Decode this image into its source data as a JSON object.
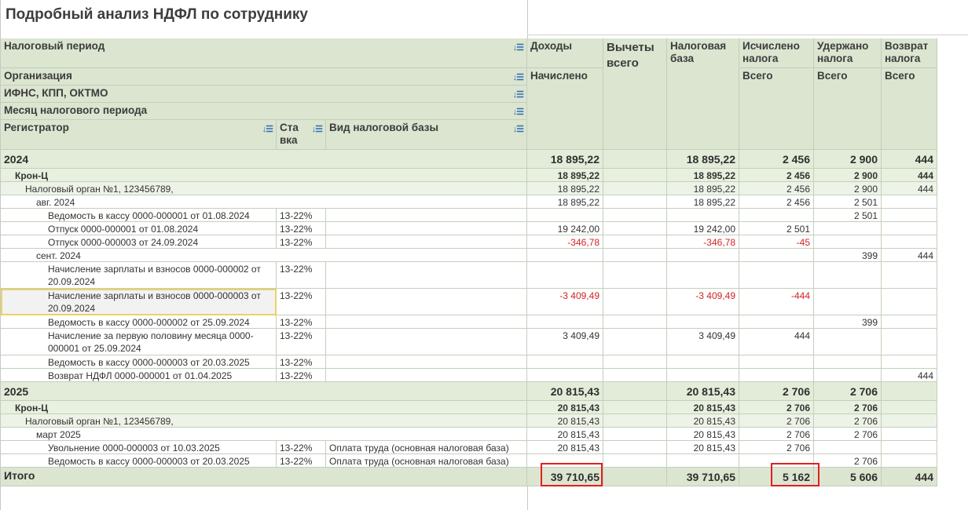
{
  "title": "Подробный анализ НДФЛ по сотруднику",
  "headers": {
    "tax_period": "Налоговый период",
    "organization": "Организация",
    "ifns": "ИФНС, КПП, ОКТМО",
    "month": "Месяц налогового периода",
    "registrar": "Регистратор",
    "rate": "Ста вка",
    "base_kind": "Вид налоговой базы",
    "income": "Доходы",
    "income_sub": "Начислено",
    "deductions": "Вычеты всего",
    "tax_base": "Налоговая база",
    "calculated": "Исчислено налога",
    "calculated_sub": "Всего",
    "withheld": "Удержано налога",
    "withheld_sub": "Всего",
    "refund": "Возврат налога",
    "refund_sub": "Всего"
  },
  "rows": [
    {
      "kind": "yr",
      "label": "2024",
      "income": "18 895,22",
      "base": "18 895,22",
      "calc": "2 456",
      "withheld": "2 900",
      "refund": "444"
    },
    {
      "kind": "org",
      "label": "Крон-Ц",
      "income": "18 895,22",
      "base": "18 895,22",
      "calc": "2 456",
      "withheld": "2 900",
      "refund": "444"
    },
    {
      "kind": "ifns",
      "label": "Налоговый орган №1, 123456789,",
      "income": "18 895,22",
      "base": "18 895,22",
      "calc": "2 456",
      "withheld": "2 900",
      "refund": "444"
    },
    {
      "kind": "month",
      "label": "авг. 2024",
      "income": "18 895,22",
      "base": "18 895,22",
      "calc": "2 456",
      "withheld": "2 501",
      "refund": ""
    },
    {
      "kind": "doc",
      "label": "Ведомость в кассу 0000-000001 от 01.08.2024",
      "rate": "13-22%",
      "base_kind": "",
      "income": "",
      "base": "",
      "calc": "",
      "withheld": "2 501",
      "refund": ""
    },
    {
      "kind": "doc",
      "label": "Отпуск 0000-000001 от 01.08.2024",
      "rate": "13-22%",
      "base_kind": "",
      "income": "19 242,00",
      "base": "19 242,00",
      "calc": "2 501",
      "withheld": "",
      "refund": ""
    },
    {
      "kind": "doc",
      "label": "Отпуск 0000-000003 от 24.09.2024",
      "rate": "13-22%",
      "base_kind": "",
      "income": "-346,78",
      "base": "-346,78",
      "calc": "-45",
      "withheld": "",
      "refund": "",
      "neg": true
    },
    {
      "kind": "month",
      "label": "сент. 2024",
      "income": "",
      "base": "",
      "calc": "",
      "withheld": "399",
      "refund": "444"
    },
    {
      "kind": "doc2",
      "label": "Начисление зарплаты и взносов 0000-000002 от 20.09.2024",
      "rate": "13-22%",
      "base_kind": "",
      "income": "",
      "base": "",
      "calc": "",
      "withheld": "",
      "refund": ""
    },
    {
      "kind": "doc2",
      "label": "Начисление зарплаты и взносов 0000-000003 от 20.09.2024",
      "rate": "13-22%",
      "base_kind": "",
      "income": "-3 409,49",
      "base": "-3 409,49",
      "calc": "-444",
      "withheld": "",
      "refund": "",
      "neg": true,
      "selected": true
    },
    {
      "kind": "doc",
      "label": "Ведомость в кассу 0000-000002 от 25.09.2024",
      "rate": "13-22%",
      "base_kind": "",
      "income": "",
      "base": "",
      "calc": "",
      "withheld": "399",
      "refund": ""
    },
    {
      "kind": "doc2",
      "label": "Начисление за первую половину месяца 0000-000001 от 25.09.2024",
      "rate": "13-22%",
      "base_kind": "",
      "income": "3 409,49",
      "base": "3 409,49",
      "calc": "444",
      "withheld": "",
      "refund": ""
    },
    {
      "kind": "doc",
      "label": "Ведомость в кассу 0000-000003 от 20.03.2025",
      "rate": "13-22%",
      "base_kind": "",
      "income": "",
      "base": "",
      "calc": "",
      "withheld": "",
      "refund": ""
    },
    {
      "kind": "doc",
      "label": "Возврат НДФЛ 0000-000001 от 01.04.2025",
      "rate": "13-22%",
      "base_kind": "",
      "income": "",
      "base": "",
      "calc": "",
      "withheld": "",
      "refund": "444"
    },
    {
      "kind": "yr",
      "label": "2025",
      "income": "20 815,43",
      "base": "20 815,43",
      "calc": "2 706",
      "withheld": "2 706",
      "refund": ""
    },
    {
      "kind": "org",
      "label": "Крон-Ц",
      "income": "20 815,43",
      "base": "20 815,43",
      "calc": "2 706",
      "withheld": "2 706",
      "refund": ""
    },
    {
      "kind": "ifns",
      "label": "Налоговый орган №1, 123456789,",
      "income": "20 815,43",
      "base": "20 815,43",
      "calc": "2 706",
      "withheld": "2 706",
      "refund": ""
    },
    {
      "kind": "month",
      "label": "март 2025",
      "income": "20 815,43",
      "base": "20 815,43",
      "calc": "2 706",
      "withheld": "2 706",
      "refund": ""
    },
    {
      "kind": "doc",
      "label": "Увольнение 0000-000003 от 10.03.2025",
      "rate": "13-22%",
      "base_kind": "Оплата труда (основная налоговая база)",
      "income": "20 815,43",
      "base": "20 815,43",
      "calc": "2 706",
      "withheld": "",
      "refund": ""
    },
    {
      "kind": "doc",
      "label": "Ведомость в кассу 0000-000003 от 20.03.2025",
      "rate": "13-22%",
      "base_kind": "Оплата труда (основная налоговая база)",
      "income": "",
      "base": "",
      "calc": "",
      "withheld": "2 706",
      "refund": ""
    }
  ],
  "total": {
    "label": "Итого",
    "income": "39 710,65",
    "base": "39 710,65",
    "calc": "5 162",
    "withheld": "5 606",
    "refund": "444"
  },
  "sort_icon": "sort-icon",
  "colors": {
    "header_bg": "#dbe5d0",
    "negative": "#d22323",
    "highlight": "#e21f1f",
    "selection": "#e8d26a",
    "sort_icon": "#2f6bb5"
  }
}
